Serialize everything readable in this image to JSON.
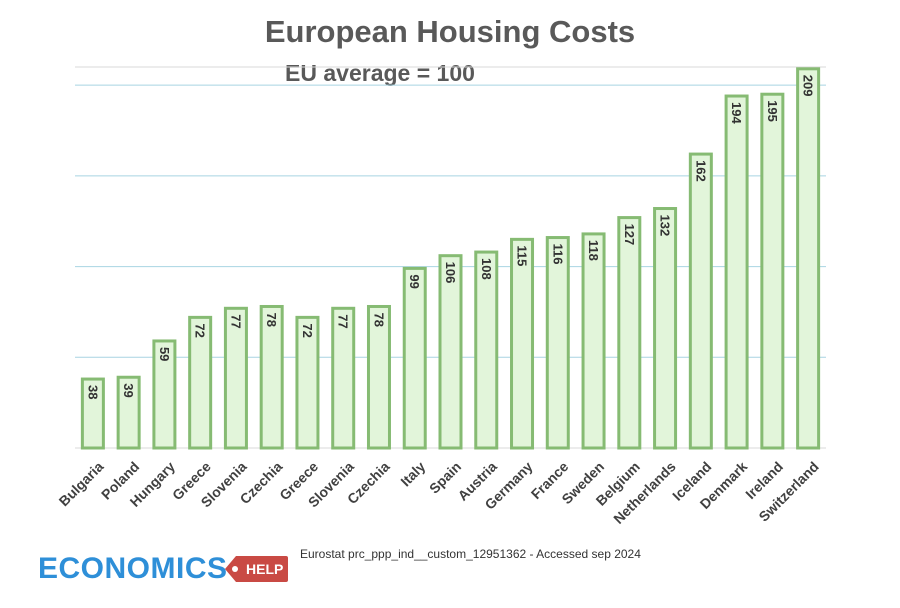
{
  "chart_data": {
    "type": "bar",
    "title": "European Housing Costs",
    "subtitle": "EU average = 100",
    "xlabel": "",
    "ylabel": "",
    "ylim": [
      0,
      210
    ],
    "categories": [
      "Bulgaria",
      "Poland",
      "Hungary",
      "Greece",
      "Slovenia",
      "Czechia",
      "Greece",
      "Slovenia",
      "Czechia",
      "Italy",
      "Spain",
      "Austria",
      "Germany",
      "France",
      "Sweden",
      "Belgium",
      "Netherlands",
      "Iceland",
      "Denmark",
      "Ireland",
      "Switzerland"
    ],
    "values": [
      38,
      39,
      59,
      72,
      77,
      78,
      72,
      77,
      78,
      99,
      106,
      108,
      115,
      116,
      118,
      127,
      132,
      162,
      194,
      195,
      209
    ],
    "gridlines": [
      50,
      100,
      150,
      200
    ],
    "grid": true,
    "bar_fill": "#e2f5da",
    "bar_stroke": "#86bb73",
    "grid_color": "#a8d4e2"
  },
  "source": "Eurostat prc_ppp_ind__custom_12951362 - Accessed sep 2024",
  "logo": {
    "text": "ECONOMICS",
    "tag": "HELP",
    "text_color": "#2e8fd8",
    "tag_color": "#c94a44"
  }
}
